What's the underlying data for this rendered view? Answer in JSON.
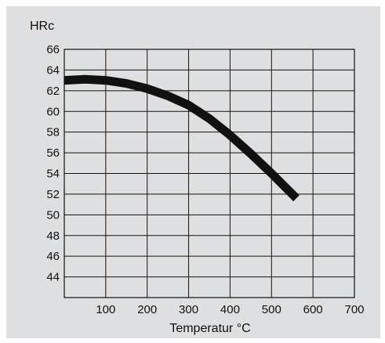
{
  "chart_data": {
    "type": "line",
    "title": "",
    "ylabel": "HRc",
    "xlabel": "Temperatur °C",
    "xlim": [
      0,
      700
    ],
    "ylim": [
      42,
      66
    ],
    "xticks": [
      100,
      200,
      300,
      400,
      500,
      600,
      700
    ],
    "yticks": [
      44,
      46,
      48,
      50,
      52,
      54,
      56,
      58,
      60,
      62,
      64,
      66
    ],
    "grid": true,
    "series": [
      {
        "x": [
          0,
          50,
          100,
          150,
          200,
          250,
          300,
          350,
          400,
          450,
          500,
          560
        ],
        "y": [
          63.0,
          63.1,
          63.0,
          62.7,
          62.2,
          61.5,
          60.6,
          59.3,
          57.7,
          55.9,
          54.0,
          51.6
        ]
      }
    ],
    "colors": {
      "line": "#111111",
      "background": "#dedfe0",
      "grid": "#111111"
    }
  }
}
